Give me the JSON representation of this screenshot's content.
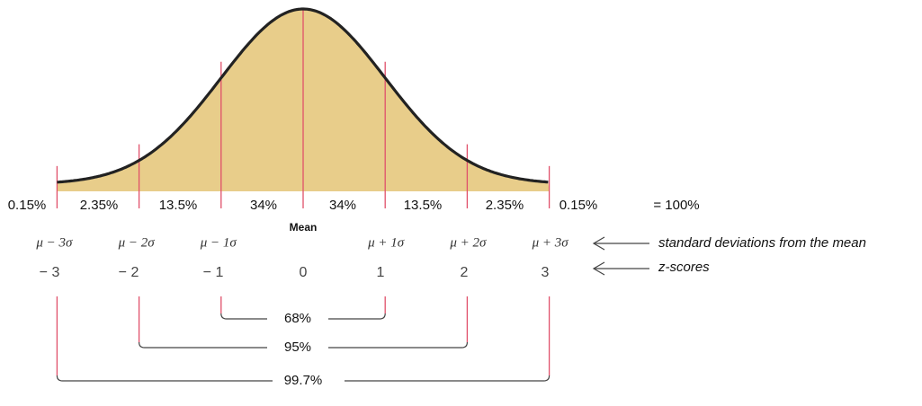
{
  "regions": [
    "0.15%",
    "2.35%",
    "13.5%",
    "34%",
    "34%",
    "13.5%",
    "2.35%",
    "0.15%"
  ],
  "total": "= 100%",
  "mean_label": "Mean",
  "sigma_labels": [
    "μ − 3σ",
    "μ − 2σ",
    "μ − 1σ",
    "μ + 1σ",
    "μ + 2σ",
    "μ + 3σ"
  ],
  "z_scores": [
    "− 3",
    "− 2",
    "− 1",
    "0",
    "1",
    "2",
    "3"
  ],
  "annotations": [
    "standard deviations from the mean",
    "z-scores"
  ],
  "brackets": [
    "68%",
    "95%",
    "99.7%"
  ]
}
